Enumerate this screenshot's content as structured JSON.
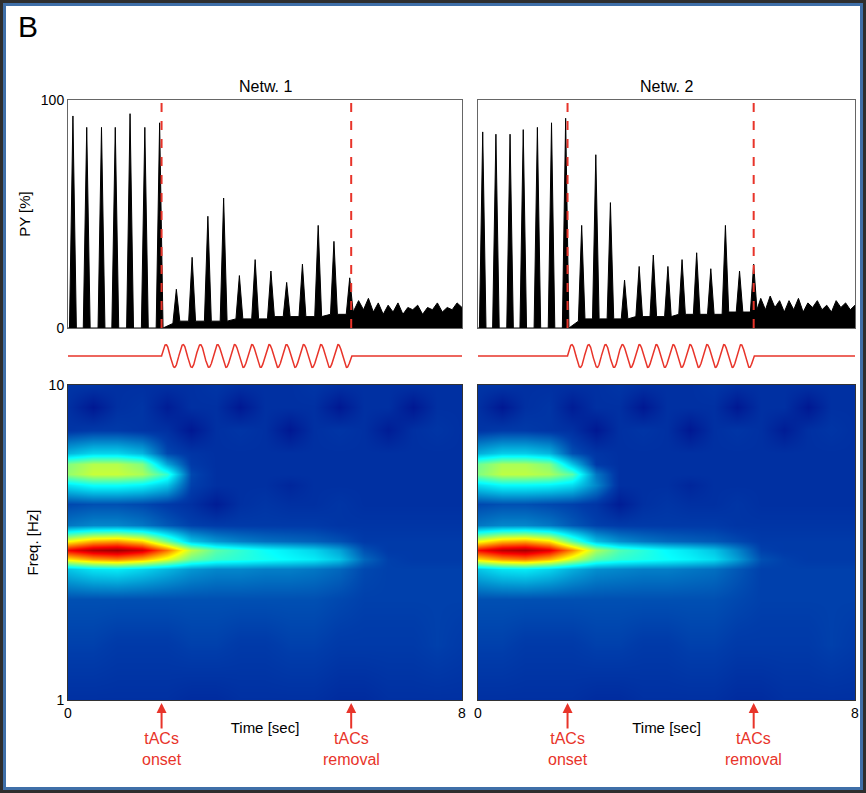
{
  "chart_data": {
    "type": "multi-panel",
    "panel_label": "B",
    "x_label": "Time [sec]",
    "xlim": [
      0,
      8
    ],
    "xticks": [
      0,
      8
    ],
    "activity": {
      "type": "area",
      "y_label": "PY [%]",
      "ylim": [
        0,
        100
      ],
      "yticks": [
        0,
        100
      ],
      "color": "#000000"
    },
    "stimulus": {
      "type": "line",
      "color": "#e8342a",
      "line_style": "solid",
      "cycles": 11
    },
    "events": {
      "color": "#e8342a",
      "line_style": "dashed",
      "labels": [
        "tACs onset",
        "tACs removal"
      ]
    },
    "spectrogram": {
      "type": "heatmap",
      "y_label": "Freq. [Hz]",
      "ylim": [
        1,
        10
      ],
      "yticks": [
        1,
        10
      ],
      "log": "y",
      "zlim": [
        0,
        1
      ]
    },
    "panels": [
      {
        "title": "Netw. 1",
        "onset": 1.9,
        "removal": 5.75,
        "activity": {
          "x": [
            0,
            0.03,
            0.1,
            0.17,
            0.31,
            0.38,
            0.45,
            0.61,
            0.68,
            0.75,
            0.89,
            0.96,
            1.03,
            1.19,
            1.26,
            1.33,
            1.49,
            1.56,
            1.63,
            1.79,
            1.86,
            1.93,
            2.13,
            2.2,
            2.27,
            2.45,
            2.52,
            2.59,
            2.77,
            2.84,
            2.91,
            3.09,
            3.16,
            3.23,
            3.41,
            3.48,
            3.55,
            3.73,
            3.8,
            3.87,
            4.05,
            4.12,
            4.19,
            4.37,
            4.44,
            4.51,
            4.69,
            4.76,
            4.83,
            5.01,
            5.08,
            5.15,
            5.33,
            5.4,
            5.47,
            5.65,
            5.72,
            5.79,
            5.9,
            6.0,
            6.1,
            6.2,
            6.3,
            6.4,
            6.5,
            6.6,
            6.7,
            6.8,
            6.9,
            7.0,
            7.1,
            7.2,
            7.3,
            7.4,
            7.5,
            7.6,
            7.7,
            7.8,
            7.9,
            8.0
          ],
          "values": [
            0,
            0,
            93,
            0,
            0,
            88,
            0,
            0,
            88,
            0,
            0,
            88,
            0,
            0,
            94,
            0,
            0,
            88,
            0,
            0,
            90,
            0,
            2,
            17,
            3,
            3,
            31,
            3,
            3,
            49,
            3,
            3,
            57,
            3,
            4,
            23,
            4,
            4,
            30,
            4,
            4,
            25,
            5,
            5,
            20,
            5,
            5,
            28,
            5,
            5,
            45,
            5,
            6,
            38,
            6,
            6,
            22,
            7,
            12,
            8,
            13,
            7,
            11,
            6,
            10,
            7,
            11,
            6,
            9,
            8,
            10,
            6,
            9,
            8,
            11,
            7,
            9,
            8,
            11,
            9
          ]
        },
        "spectrogram": {
          "x": [
            0,
            0.5,
            1,
            1.5,
            2,
            2.5,
            3,
            3.5,
            4,
            4.5,
            5,
            5.5,
            6,
            6.5,
            7,
            7.5,
            8
          ],
          "y": [
            1,
            1.5,
            2.1,
            2.6,
            2.8,
            3.0,
            3.2,
            3.6,
            4.2,
            4.8,
            5.2,
            5.6,
            6.1,
            7.2,
            8.5,
            10
          ],
          "z": [
            [
              0.1,
              0.1,
              0.1,
              0.1,
              0.1,
              0.09,
              0.09,
              0.1,
              0.1,
              0.1,
              0.1,
              0.09,
              0.09,
              0.1,
              0.1,
              0.1,
              0.1
            ],
            [
              0.13,
              0.13,
              0.12,
              0.12,
              0.12,
              0.13,
              0.13,
              0.12,
              0.12,
              0.13,
              0.13,
              0.12,
              0.12,
              0.12,
              0.12,
              0.13,
              0.12
            ],
            [
              0.15,
              0.15,
              0.15,
              0.15,
              0.15,
              0.15,
              0.15,
              0.15,
              0.15,
              0.15,
              0.15,
              0.14,
              0.13,
              0.13,
              0.13,
              0.13,
              0.13
            ],
            [
              0.3,
              0.34,
              0.35,
              0.32,
              0.28,
              0.24,
              0.22,
              0.22,
              0.21,
              0.21,
              0.2,
              0.18,
              0.14,
              0.13,
              0.13,
              0.13,
              0.13
            ],
            [
              0.65,
              0.72,
              0.75,
              0.7,
              0.6,
              0.48,
              0.43,
              0.41,
              0.39,
              0.37,
              0.35,
              0.3,
              0.18,
              0.13,
              0.12,
              0.12,
              0.12
            ],
            [
              0.88,
              0.95,
              0.97,
              0.92,
              0.76,
              0.56,
              0.46,
              0.42,
              0.38,
              0.35,
              0.32,
              0.26,
              0.15,
              0.12,
              0.12,
              0.12,
              0.12
            ],
            [
              0.62,
              0.7,
              0.72,
              0.66,
              0.48,
              0.3,
              0.24,
              0.21,
              0.19,
              0.18,
              0.17,
              0.15,
              0.12,
              0.12,
              0.12,
              0.12,
              0.12
            ],
            [
              0.2,
              0.22,
              0.22,
              0.2,
              0.16,
              0.13,
              0.12,
              0.12,
              0.12,
              0.12,
              0.12,
              0.11,
              0.11,
              0.11,
              0.11,
              0.11,
              0.11
            ],
            [
              0.14,
              0.15,
              0.15,
              0.14,
              0.12,
              0.1,
              0.06,
              0.1,
              0.11,
              0.1,
              0.1,
              0.11,
              0.1,
              0.1,
              0.1,
              0.1,
              0.1
            ],
            [
              0.34,
              0.38,
              0.38,
              0.36,
              0.3,
              0.13,
              0.1,
              0.1,
              0.1,
              0.08,
              0.1,
              0.1,
              0.1,
              0.1,
              0.1,
              0.1,
              0.1
            ],
            [
              0.52,
              0.57,
              0.57,
              0.54,
              0.42,
              0.14,
              0.1,
              0.1,
              0.1,
              0.1,
              0.1,
              0.1,
              0.1,
              0.1,
              0.1,
              0.1,
              0.1
            ],
            [
              0.5,
              0.55,
              0.55,
              0.5,
              0.26,
              0.12,
              0.1,
              0.1,
              0.1,
              0.1,
              0.1,
              0.1,
              0.1,
              0.1,
              0.1,
              0.1,
              0.1
            ],
            [
              0.28,
              0.32,
              0.32,
              0.28,
              0.14,
              0.11,
              0.1,
              0.1,
              0.1,
              0.1,
              0.1,
              0.1,
              0.1,
              0.1,
              0.1,
              0.1,
              0.1
            ],
            [
              0.11,
              0.12,
              0.12,
              0.11,
              0.1,
              0.05,
              0.1,
              0.11,
              0.1,
              0.05,
              0.1,
              0.11,
              0.1,
              0.06,
              0.1,
              0.11,
              0.1
            ],
            [
              0.1,
              0.05,
              0.1,
              0.11,
              0.06,
              0.1,
              0.1,
              0.05,
              0.1,
              0.1,
              0.1,
              0.05,
              0.1,
              0.1,
              0.05,
              0.1,
              0.1
            ],
            [
              0.11,
              0.11,
              0.1,
              0.1,
              0.1,
              0.1,
              0.11,
              0.1,
              0.1,
              0.1,
              0.11,
              0.1,
              0.1,
              0.1,
              0.1,
              0.1,
              0.1
            ]
          ]
        }
      },
      {
        "title": "Netw. 2",
        "onset": 1.9,
        "removal": 5.85,
        "activity": {
          "x": [
            0,
            0.03,
            0.1,
            0.17,
            0.31,
            0.38,
            0.45,
            0.61,
            0.68,
            0.75,
            0.89,
            0.96,
            1.03,
            1.19,
            1.26,
            1.33,
            1.49,
            1.56,
            1.63,
            1.79,
            1.86,
            1.93,
            2.13,
            2.2,
            2.27,
            2.43,
            2.5,
            2.57,
            2.74,
            2.81,
            2.88,
            3.04,
            3.11,
            3.18,
            3.35,
            3.42,
            3.49,
            3.65,
            3.72,
            3.79,
            3.96,
            4.03,
            4.1,
            4.26,
            4.33,
            4.4,
            4.57,
            4.64,
            4.71,
            4.87,
            4.94,
            5.01,
            5.18,
            5.25,
            5.32,
            5.48,
            5.55,
            5.62,
            5.78,
            5.85,
            5.92,
            6.0,
            6.1,
            6.2,
            6.3,
            6.4,
            6.5,
            6.6,
            6.7,
            6.8,
            6.9,
            7.0,
            7.1,
            7.2,
            7.3,
            7.4,
            7.5,
            7.6,
            7.7,
            7.8,
            7.9,
            8.0
          ],
          "values": [
            0,
            0,
            86,
            0,
            0,
            85,
            0,
            0,
            85,
            0,
            0,
            87,
            0,
            0,
            88,
            0,
            0,
            90,
            0,
            0,
            92,
            0,
            3,
            45,
            4,
            4,
            76,
            4,
            4,
            55,
            4,
            4,
            21,
            4,
            5,
            27,
            5,
            5,
            32,
            5,
            5,
            27,
            5,
            6,
            30,
            6,
            6,
            33,
            6,
            6,
            26,
            6,
            6,
            45,
            7,
            7,
            25,
            7,
            7,
            28,
            8,
            13,
            8,
            14,
            9,
            12,
            7,
            12,
            8,
            13,
            7,
            11,
            9,
            12,
            8,
            10,
            7,
            12,
            9,
            11,
            8,
            10
          ]
        },
        "spectrogram": {
          "x": [
            0,
            0.5,
            1,
            1.5,
            2,
            2.5,
            3,
            3.5,
            4,
            4.5,
            5,
            5.5,
            6,
            6.5,
            7,
            7.5,
            8
          ],
          "y": [
            1,
            1.5,
            2.1,
            2.6,
            2.8,
            3.0,
            3.2,
            3.6,
            4.2,
            4.8,
            5.2,
            5.6,
            6.1,
            7.2,
            8.5,
            10
          ],
          "z": [
            [
              0.1,
              0.1,
              0.1,
              0.1,
              0.1,
              0.09,
              0.09,
              0.1,
              0.1,
              0.1,
              0.1,
              0.09,
              0.09,
              0.1,
              0.1,
              0.1,
              0.1
            ],
            [
              0.13,
              0.13,
              0.12,
              0.12,
              0.12,
              0.13,
              0.13,
              0.12,
              0.12,
              0.13,
              0.13,
              0.12,
              0.12,
              0.12,
              0.12,
              0.13,
              0.12
            ],
            [
              0.15,
              0.15,
              0.15,
              0.15,
              0.15,
              0.15,
              0.15,
              0.15,
              0.15,
              0.15,
              0.15,
              0.14,
              0.13,
              0.13,
              0.13,
              0.13,
              0.13
            ],
            [
              0.3,
              0.34,
              0.35,
              0.32,
              0.27,
              0.23,
              0.22,
              0.21,
              0.21,
              0.2,
              0.19,
              0.16,
              0.13,
              0.13,
              0.13,
              0.13,
              0.13
            ],
            [
              0.66,
              0.73,
              0.76,
              0.7,
              0.58,
              0.46,
              0.42,
              0.4,
              0.38,
              0.36,
              0.33,
              0.25,
              0.15,
              0.13,
              0.12,
              0.12,
              0.12
            ],
            [
              0.87,
              0.94,
              0.96,
              0.9,
              0.74,
              0.54,
              0.45,
              0.41,
              0.37,
              0.34,
              0.3,
              0.22,
              0.13,
              0.12,
              0.12,
              0.12,
              0.12
            ],
            [
              0.61,
              0.69,
              0.71,
              0.65,
              0.46,
              0.29,
              0.23,
              0.2,
              0.18,
              0.17,
              0.16,
              0.14,
              0.12,
              0.12,
              0.12,
              0.12,
              0.12
            ],
            [
              0.2,
              0.22,
              0.22,
              0.2,
              0.16,
              0.13,
              0.12,
              0.12,
              0.12,
              0.12,
              0.12,
              0.11,
              0.11,
              0.11,
              0.11,
              0.11,
              0.11
            ],
            [
              0.14,
              0.15,
              0.15,
              0.14,
              0.13,
              0.11,
              0.06,
              0.1,
              0.11,
              0.1,
              0.1,
              0.11,
              0.1,
              0.1,
              0.1,
              0.1,
              0.1
            ],
            [
              0.33,
              0.37,
              0.37,
              0.36,
              0.33,
              0.22,
              0.1,
              0.1,
              0.1,
              0.08,
              0.1,
              0.1,
              0.1,
              0.1,
              0.1,
              0.1,
              0.1
            ],
            [
              0.5,
              0.56,
              0.56,
              0.54,
              0.46,
              0.2,
              0.1,
              0.1,
              0.1,
              0.1,
              0.1,
              0.1,
              0.1,
              0.1,
              0.1,
              0.1,
              0.1
            ],
            [
              0.48,
              0.54,
              0.54,
              0.5,
              0.3,
              0.12,
              0.1,
              0.1,
              0.1,
              0.1,
              0.1,
              0.1,
              0.1,
              0.1,
              0.1,
              0.1,
              0.1
            ],
            [
              0.27,
              0.31,
              0.31,
              0.28,
              0.15,
              0.11,
              0.1,
              0.1,
              0.1,
              0.1,
              0.1,
              0.1,
              0.1,
              0.1,
              0.1,
              0.1,
              0.1
            ],
            [
              0.11,
              0.12,
              0.12,
              0.11,
              0.1,
              0.05,
              0.1,
              0.11,
              0.1,
              0.05,
              0.1,
              0.11,
              0.1,
              0.06,
              0.1,
              0.11,
              0.1
            ],
            [
              0.1,
              0.05,
              0.1,
              0.11,
              0.06,
              0.1,
              0.1,
              0.05,
              0.1,
              0.1,
              0.1,
              0.05,
              0.1,
              0.1,
              0.05,
              0.1,
              0.1
            ],
            [
              0.11,
              0.11,
              0.1,
              0.1,
              0.1,
              0.1,
              0.11,
              0.1,
              0.1,
              0.1,
              0.11,
              0.1,
              0.1,
              0.1,
              0.1,
              0.1,
              0.1
            ]
          ]
        }
      }
    ]
  }
}
